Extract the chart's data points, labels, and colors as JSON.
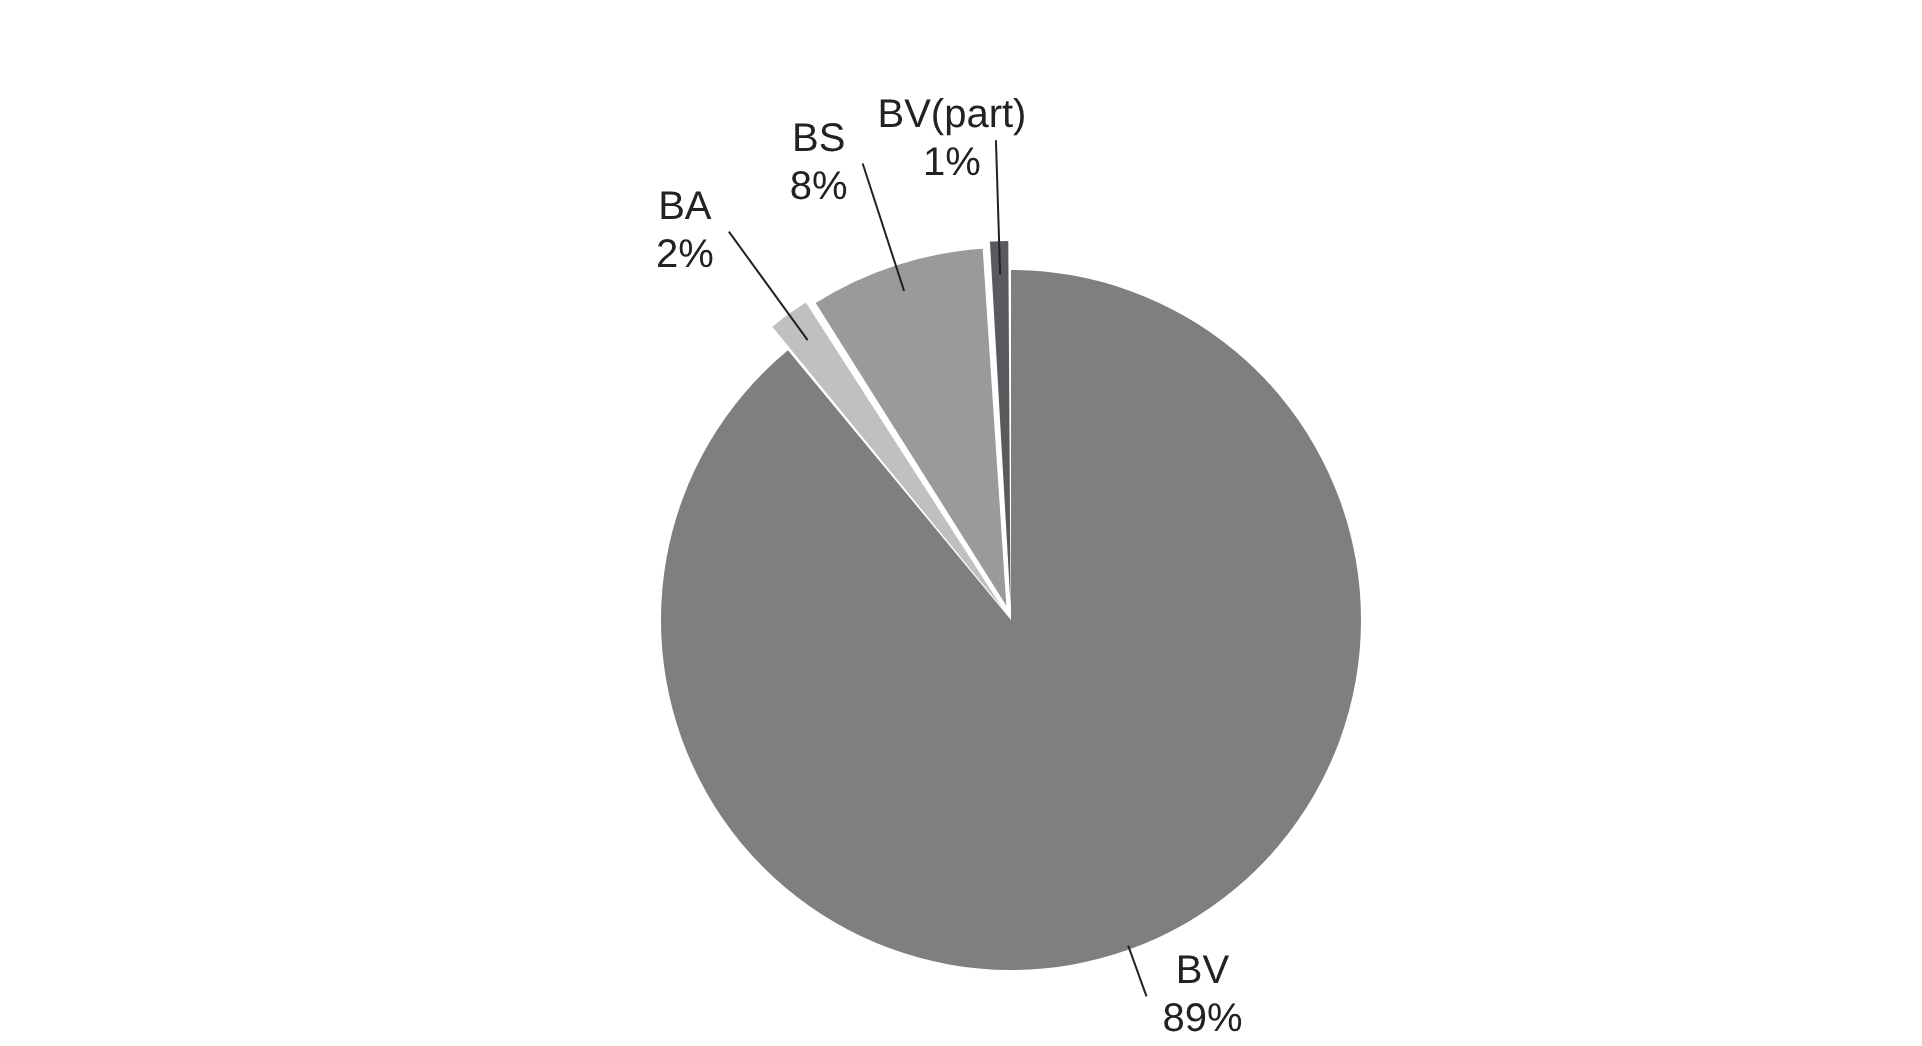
{
  "chart_data": {
    "type": "pie",
    "categories": [
      "BV",
      "BA",
      "BS",
      "BV(part)"
    ],
    "values": [
      89,
      2,
      8,
      1
    ],
    "colors": [
      "#7f7f81",
      "#c0c0c2",
      "#9a9a9c",
      "#5a5a5e"
    ],
    "value_labels": [
      "89%",
      "2%",
      "8%",
      "1%"
    ],
    "legend": false
  }
}
